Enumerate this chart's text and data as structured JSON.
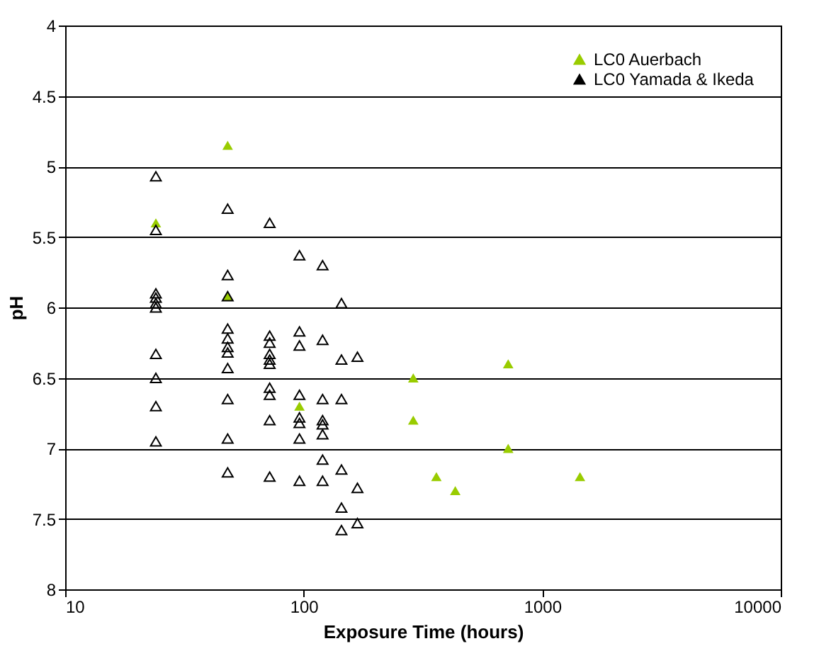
{
  "chart_data": {
    "type": "scatter",
    "xlabel": "Exposure Time (hours)",
    "ylabel": "pH",
    "log": "x",
    "xlim": [
      10,
      10000
    ],
    "xticks": [
      10,
      100,
      1000,
      10000
    ],
    "ylim": [
      8,
      4
    ],
    "yticks": [
      4,
      4.5,
      5,
      5.5,
      6,
      6.5,
      7,
      7.5,
      8
    ],
    "grid": "y",
    "legend": "top right",
    "marker": "triangle",
    "series": [
      {
        "name": "LC0 Auerbach",
        "color": "#99cc00",
        "x": [
          48,
          24,
          48,
          96,
          288,
          288,
          720,
          720,
          360,
          432,
          1440
        ],
        "values": [
          4.85,
          5.4,
          5.92,
          6.7,
          6.5,
          6.8,
          6.4,
          7.0,
          7.2,
          7.3,
          7.2
        ]
      },
      {
        "name": "LC0 Yamada & Ikeda",
        "color": "#000000",
        "x": [
          24,
          24,
          24,
          24,
          24,
          24,
          24,
          24,
          24,
          24,
          48,
          48,
          48,
          48,
          48,
          48,
          48,
          48,
          48,
          48,
          48,
          72,
          72,
          72,
          72,
          72,
          72,
          72,
          72,
          72,
          72,
          96,
          96,
          96,
          96,
          96,
          96,
          96,
          96,
          120,
          120,
          120,
          120,
          120,
          120,
          120,
          120,
          144,
          144,
          144,
          144,
          144,
          144,
          168,
          168,
          168
        ],
        "values": [
          5.07,
          5.45,
          5.9,
          5.93,
          5.97,
          6.0,
          6.33,
          6.5,
          6.7,
          6.95,
          5.3,
          5.77,
          5.92,
          6.15,
          6.22,
          6.28,
          6.32,
          6.43,
          6.65,
          6.93,
          7.17,
          5.4,
          6.2,
          6.25,
          6.33,
          6.37,
          6.4,
          6.57,
          6.62,
          6.8,
          7.2,
          5.63,
          6.17,
          6.27,
          6.62,
          6.78,
          6.82,
          6.93,
          7.23,
          5.7,
          6.23,
          6.65,
          6.8,
          6.83,
          6.9,
          7.08,
          7.23,
          5.97,
          6.37,
          6.65,
          7.15,
          7.42,
          7.58,
          6.35,
          7.28,
          7.53
        ]
      }
    ]
  }
}
